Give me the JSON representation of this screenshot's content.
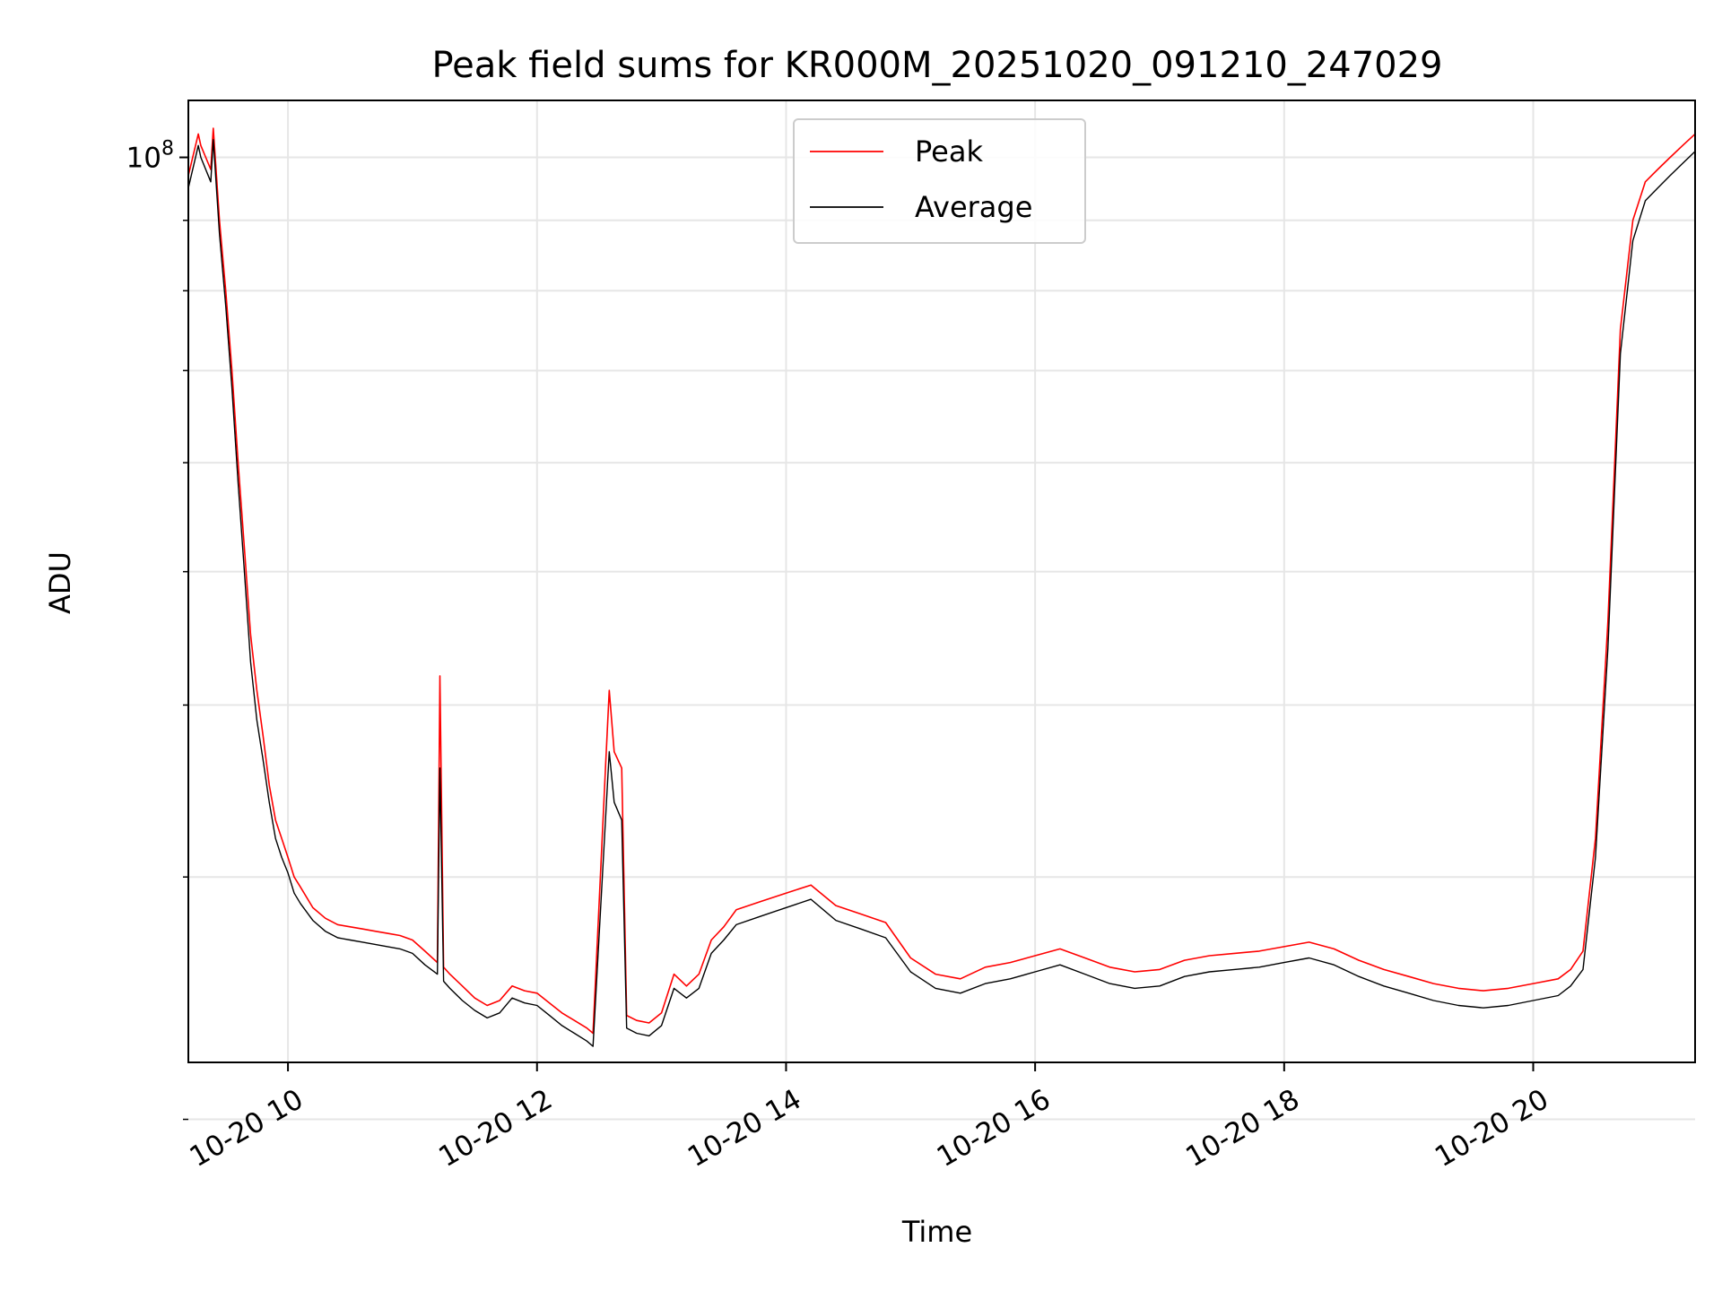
{
  "chart_data": {
    "type": "line",
    "title": "Peak field sums for KR000M_20251020_091210_247029",
    "xlabel": "Time",
    "ylabel": "ADU",
    "yscale": "log",
    "ylim": [
      22000000,
      110000000
    ],
    "xlim_hours": [
      9.2,
      21.3
    ],
    "grid": true,
    "legend_position": "top-center",
    "x_ticks": [
      {
        "value": 10,
        "label": "10-20 10"
      },
      {
        "value": 12,
        "label": "10-20 12"
      },
      {
        "value": 14,
        "label": "10-20 14"
      },
      {
        "value": 16,
        "label": "10-20 16"
      },
      {
        "value": 18,
        "label": "10-20 18"
      },
      {
        "value": 20,
        "label": "10-20 20"
      }
    ],
    "y_major_ticks": [
      {
        "value": 100000000,
        "label_base": "10",
        "label_exp": "8"
      }
    ],
    "y_minor_ticks": [
      20000000,
      30000000,
      40000000,
      50000000,
      60000000,
      70000000,
      80000000,
      90000000
    ],
    "series": [
      {
        "name": "Peak",
        "color": "#ff0000",
        "x": [
          9.2,
          9.28,
          9.3,
          9.38,
          9.4,
          9.45,
          9.5,
          9.55,
          9.6,
          9.65,
          9.7,
          9.75,
          9.8,
          9.85,
          9.9,
          9.95,
          10.0,
          10.05,
          10.1,
          10.2,
          10.3,
          10.4,
          10.5,
          10.6,
          10.7,
          10.8,
          10.9,
          11.0,
          11.1,
          11.2,
          11.22,
          11.25,
          11.3,
          11.4,
          11.5,
          11.6,
          11.7,
          11.8,
          11.9,
          12.0,
          12.1,
          12.2,
          12.3,
          12.4,
          12.45,
          12.55,
          12.58,
          12.62,
          12.68,
          12.72,
          12.8,
          12.9,
          13.0,
          13.1,
          13.2,
          13.3,
          13.4,
          13.5,
          13.6,
          13.8,
          14.0,
          14.2,
          14.4,
          14.6,
          14.8,
          15.0,
          15.2,
          15.4,
          15.6,
          15.8,
          16.0,
          16.2,
          16.4,
          16.6,
          16.8,
          17.0,
          17.2,
          17.4,
          17.6,
          17.8,
          18.0,
          18.2,
          18.4,
          18.6,
          18.8,
          19.0,
          19.2,
          19.4,
          19.6,
          19.8,
          20.0,
          20.2,
          20.3,
          20.4,
          20.5,
          20.6,
          20.7,
          20.8,
          20.9,
          21.0,
          21.1,
          21.2,
          21.3
        ],
        "values": [
          97000000,
          104000000,
          102000000,
          98000000,
          105000000,
          90000000,
          80000000,
          70000000,
          60000000,
          52000000,
          45000000,
          41000000,
          38000000,
          35000000,
          33000000,
          32000000,
          31000000,
          30000000,
          29500000,
          28500000,
          28000000,
          27700000,
          27600000,
          27500000,
          27400000,
          27300000,
          27200000,
          27000000,
          26500000,
          26000000,
          42000000,
          25800000,
          25500000,
          25000000,
          24500000,
          24200000,
          24400000,
          25000000,
          24800000,
          24700000,
          24300000,
          23900000,
          23600000,
          23300000,
          23100000,
          36000000,
          41000000,
          37000000,
          36000000,
          23800000,
          23600000,
          23500000,
          23900000,
          25500000,
          25000000,
          25500000,
          27000000,
          27600000,
          28400000,
          28800000,
          29200000,
          29600000,
          28600000,
          28200000,
          27800000,
          26200000,
          25500000,
          25300000,
          25800000,
          26000000,
          26300000,
          26600000,
          26200000,
          25800000,
          25600000,
          25700000,
          26100000,
          26300000,
          26400000,
          26500000,
          26700000,
          26900000,
          26600000,
          26100000,
          25700000,
          25400000,
          25100000,
          24900000,
          24800000,
          24900000,
          25100000,
          25300000,
          25700000,
          26500000,
          32000000,
          46000000,
          75000000,
          90000000,
          96000000,
          98000000,
          100000000,
          102000000,
          104000000
        ]
      },
      {
        "name": "Average",
        "color": "#000000",
        "x": [
          9.2,
          9.28,
          9.3,
          9.38,
          9.4,
          9.45,
          9.5,
          9.55,
          9.6,
          9.65,
          9.7,
          9.75,
          9.8,
          9.85,
          9.9,
          9.95,
          10.0,
          10.05,
          10.1,
          10.2,
          10.3,
          10.4,
          10.5,
          10.6,
          10.7,
          10.8,
          10.9,
          11.0,
          11.1,
          11.2,
          11.22,
          11.25,
          11.3,
          11.4,
          11.5,
          11.6,
          11.7,
          11.8,
          11.9,
          12.0,
          12.1,
          12.2,
          12.3,
          12.4,
          12.45,
          12.55,
          12.58,
          12.62,
          12.68,
          12.72,
          12.8,
          12.9,
          13.0,
          13.1,
          13.2,
          13.3,
          13.4,
          13.5,
          13.6,
          13.8,
          14.0,
          14.2,
          14.4,
          14.6,
          14.8,
          15.0,
          15.2,
          15.4,
          15.6,
          15.8,
          16.0,
          16.2,
          16.4,
          16.6,
          16.8,
          17.0,
          17.2,
          17.4,
          17.6,
          17.8,
          18.0,
          18.2,
          18.4,
          18.6,
          18.8,
          19.0,
          19.2,
          19.4,
          19.6,
          19.8,
          20.0,
          20.2,
          20.3,
          20.4,
          20.5,
          20.6,
          20.7,
          20.8,
          20.9,
          21.0,
          21.1,
          21.2,
          21.3
        ],
        "values": [
          95000000,
          102000000,
          100000000,
          96000000,
          103000000,
          88000000,
          78000000,
          68000000,
          58000000,
          50000000,
          43000000,
          39000000,
          36500000,
          34000000,
          32000000,
          31000000,
          30200000,
          29200000,
          28700000,
          27900000,
          27400000,
          27100000,
          27000000,
          26900000,
          26800000,
          26700000,
          26600000,
          26400000,
          25900000,
          25500000,
          36000000,
          25200000,
          24900000,
          24400000,
          24000000,
          23700000,
          23900000,
          24500000,
          24300000,
          24200000,
          23800000,
          23400000,
          23100000,
          22800000,
          22600000,
          33000000,
          37000000,
          34000000,
          33000000,
          23300000,
          23100000,
          23000000,
          23400000,
          24900000,
          24500000,
          24900000,
          26400000,
          27000000,
          27700000,
          28100000,
          28500000,
          28900000,
          27900000,
          27500000,
          27100000,
          25600000,
          24900000,
          24700000,
          25100000,
          25300000,
          25600000,
          25900000,
          25500000,
          25100000,
          24900000,
          25000000,
          25400000,
          25600000,
          25700000,
          25800000,
          26000000,
          26200000,
          25900000,
          25400000,
          25000000,
          24700000,
          24400000,
          24200000,
          24100000,
          24200000,
          24400000,
          24600000,
          25000000,
          25700000,
          31000000,
          44000000,
          72000000,
          87000000,
          93000000,
          95000000,
          97000000,
          99000000,
          101000000
        ]
      }
    ]
  }
}
